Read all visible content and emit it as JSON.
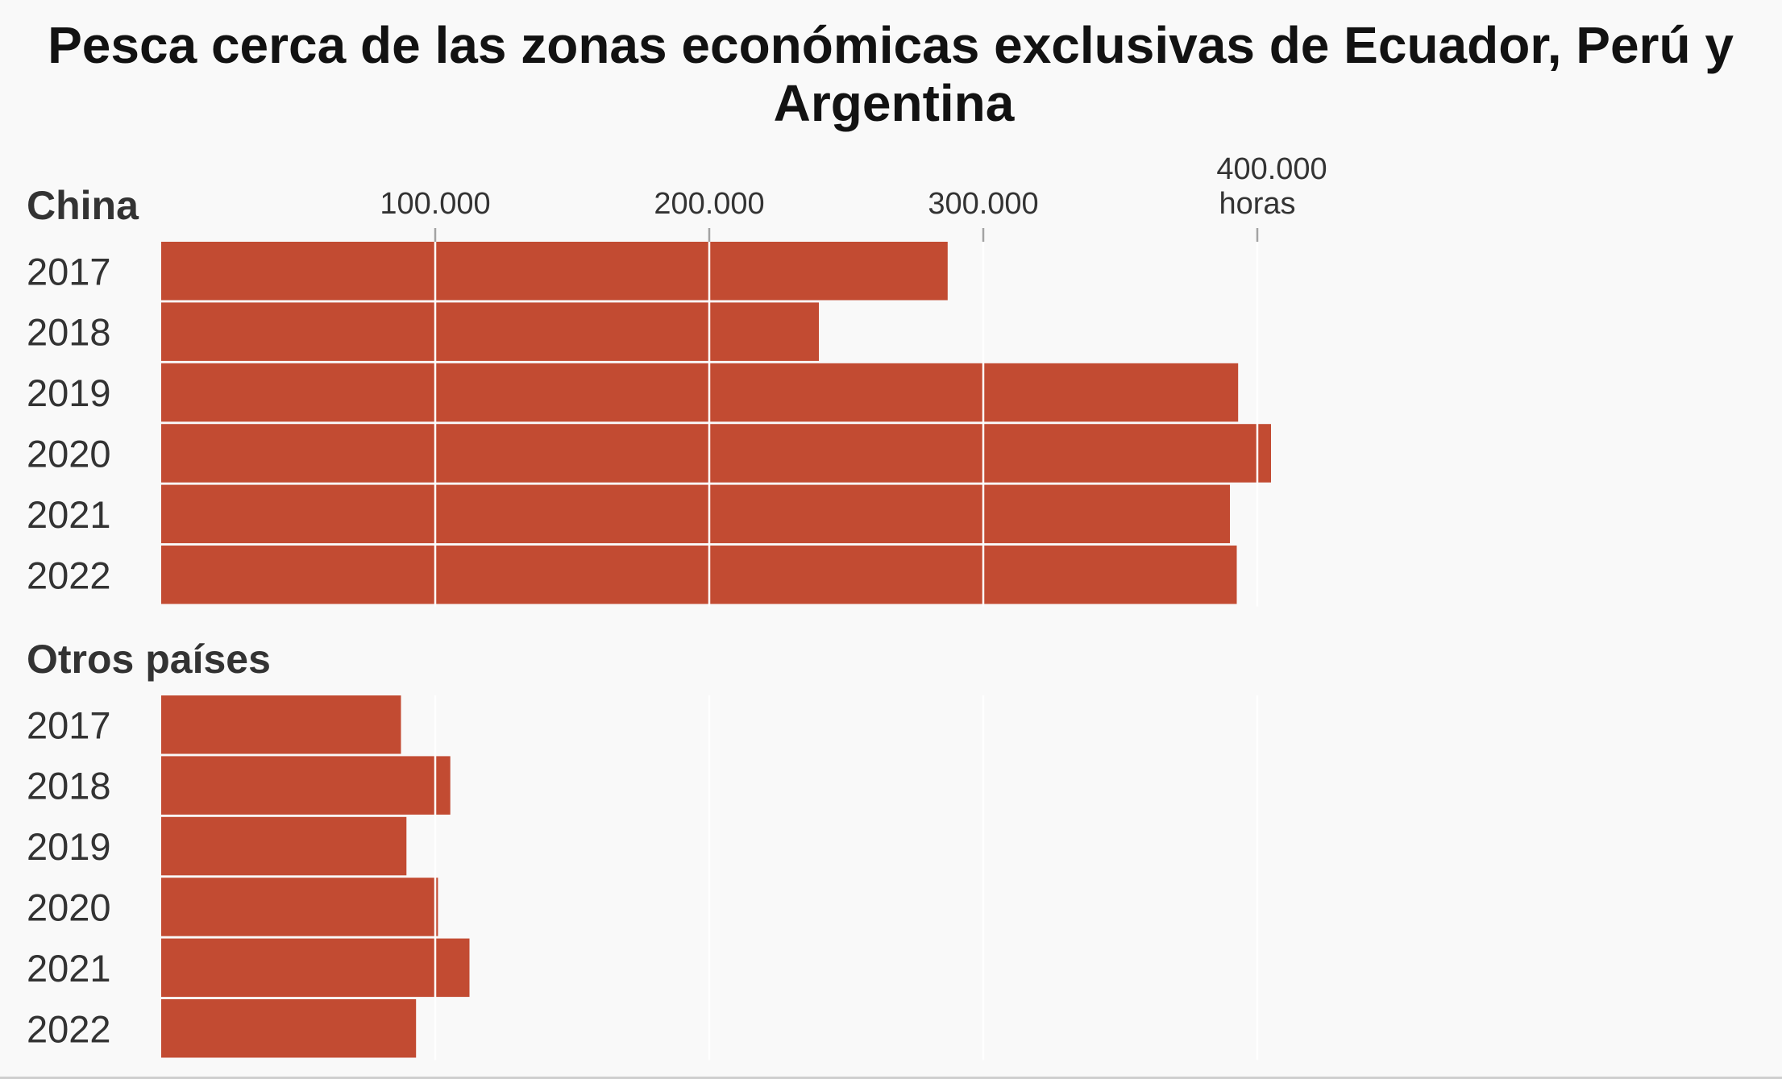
{
  "chart_data": {
    "type": "bar",
    "orientation": "horizontal",
    "title": "Pesca cerca de las zonas económicas exclusivas de Ecuador, Perú y Argentina",
    "title_lines": [
      "Pesca cerca de las zonas económicas exclusivas de Ecuador, Perú y",
      "Argentina"
    ],
    "unit_label": "horas",
    "xlim": [
      0,
      400000
    ],
    "ticks": [
      {
        "value": 100000,
        "label": "100.000"
      },
      {
        "value": 200000,
        "label": "200.000"
      },
      {
        "value": 300000,
        "label": "300.000"
      },
      {
        "value": 400000,
        "label": "400.000"
      }
    ],
    "categories": [
      "2017",
      "2018",
      "2019",
      "2020",
      "2021",
      "2022"
    ],
    "groups": [
      {
        "name": "China",
        "values": [
          287000,
          240000,
          393000,
          405000,
          390000,
          392500
        ]
      },
      {
        "name": "Otros países",
        "values": [
          87500,
          105500,
          89500,
          101000,
          112500,
          93000
        ]
      }
    ],
    "bar_color": "#c24b32",
    "grid_color": "#ffffff",
    "tick_color": "#a3a3a3",
    "grid": true
  }
}
